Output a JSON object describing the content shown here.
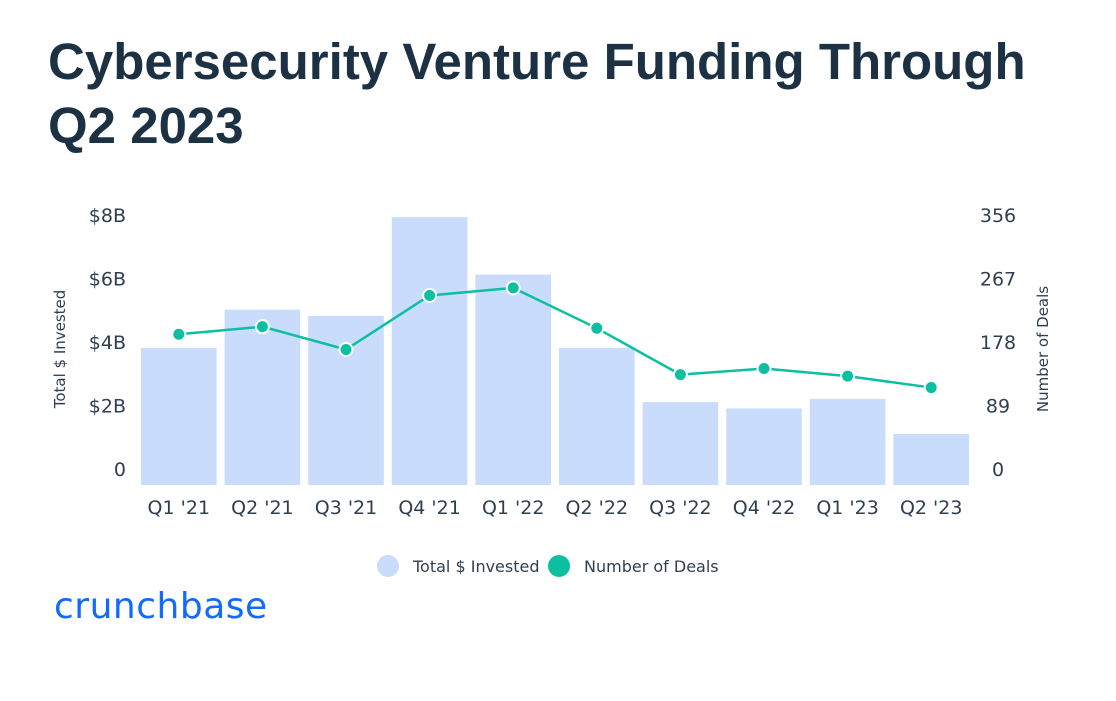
{
  "chart_data": {
    "type": "bar",
    "title": "Cybersecurity Venture Funding Through Q2 2023",
    "categories": [
      "Q1 '21",
      "Q2 '21",
      "Q3 '21",
      "Q4 '21",
      "Q1 '22",
      "Q2 '22",
      "Q3 '22",
      "Q4 '22",
      "Q1 '23",
      "Q2 '23"
    ],
    "series": [
      {
        "name": "Total $ Invested",
        "type": "bar",
        "axis": "left",
        "color": "#c9dcfb",
        "values": [
          4.3,
          5.5,
          5.3,
          8.4,
          6.6,
          4.3,
          2.6,
          2.4,
          2.7,
          1.6
        ]
      },
      {
        "name": "Number of Deals",
        "type": "line",
        "axis": "right",
        "color": "#0bbfa0",
        "values": [
          198,
          208,
          178,
          249,
          259,
          206,
          145,
          153,
          143,
          128
        ]
      }
    ],
    "ylabel": "Total $ Invested",
    "ylabel_right": "Number of Deals",
    "ylim": [
      0,
      8.5
    ],
    "ylim_right": [
      0,
      356
    ],
    "yticks": [
      0,
      2,
      4,
      6,
      8
    ],
    "yticks_labels": [
      "0",
      "$2B",
      "$4B",
      "$6B",
      "$8B"
    ],
    "yticks_right": [
      "0",
      "89",
      "178",
      "267",
      "356"
    ],
    "legend_position": "bottom-center"
  },
  "brand": {
    "logo_text": "crunchbase",
    "logo_color": "#146aff",
    "title_color": "#1c3144"
  }
}
